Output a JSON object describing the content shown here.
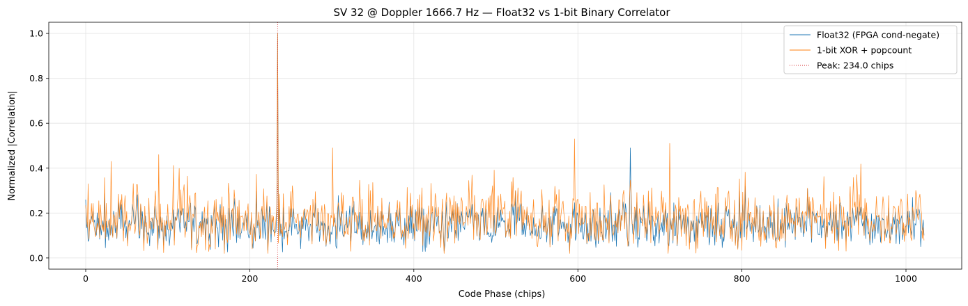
{
  "chart_data": {
    "type": "line",
    "title": "SV 32 @ Doppler 1666.7 Hz — Float32 vs 1-bit Binary Correlator",
    "xlabel": "Code Phase (chips)",
    "ylabel": "Normalized |Correlation|",
    "xlim": [
      -45,
      1068
    ],
    "ylim": [
      -0.05,
      1.05
    ],
    "xticks": [
      0,
      200,
      400,
      600,
      800,
      1000
    ],
    "yticks": [
      0.0,
      0.2,
      0.4,
      0.6,
      0.8,
      1.0
    ],
    "xtick_labels": [
      "0",
      "200",
      "400",
      "600",
      "800",
      "1000"
    ],
    "ytick_labels": [
      "0.0",
      "0.2",
      "0.4",
      "0.6",
      "0.8",
      "1.0"
    ],
    "grid": true,
    "legend_position": "top-right",
    "n_samples": 1023,
    "peak_x": 234.0,
    "peak_y": 1.0,
    "series": [
      {
        "name": "Float32 (FPGA cond-negate)",
        "color": "#1f77b4",
        "style": "solid",
        "noise_mean": 0.12,
        "noise_min": 0.0,
        "noise_max": 0.49,
        "notable_points": [
          [
            0,
            0.26
          ],
          [
            664,
            0.49
          ],
          [
            234,
            1.0
          ]
        ]
      },
      {
        "name": "1-bit XOR + popcount",
        "color": "#ff7f0e",
        "style": "solid",
        "noise_mean": 0.16,
        "noise_min": 0.02,
        "noise_max": 0.53,
        "notable_points": [
          [
            3,
            0.33
          ],
          [
            31,
            0.43
          ],
          [
            89,
            0.46
          ],
          [
            301,
            0.49
          ],
          [
            596,
            0.53
          ],
          [
            712,
            0.51
          ],
          [
            234,
            1.0
          ]
        ]
      }
    ],
    "vlines": [
      {
        "name": "Peak: 234.0 chips",
        "x": 234.0,
        "color": "#d62728",
        "style": "dotted"
      }
    ]
  }
}
